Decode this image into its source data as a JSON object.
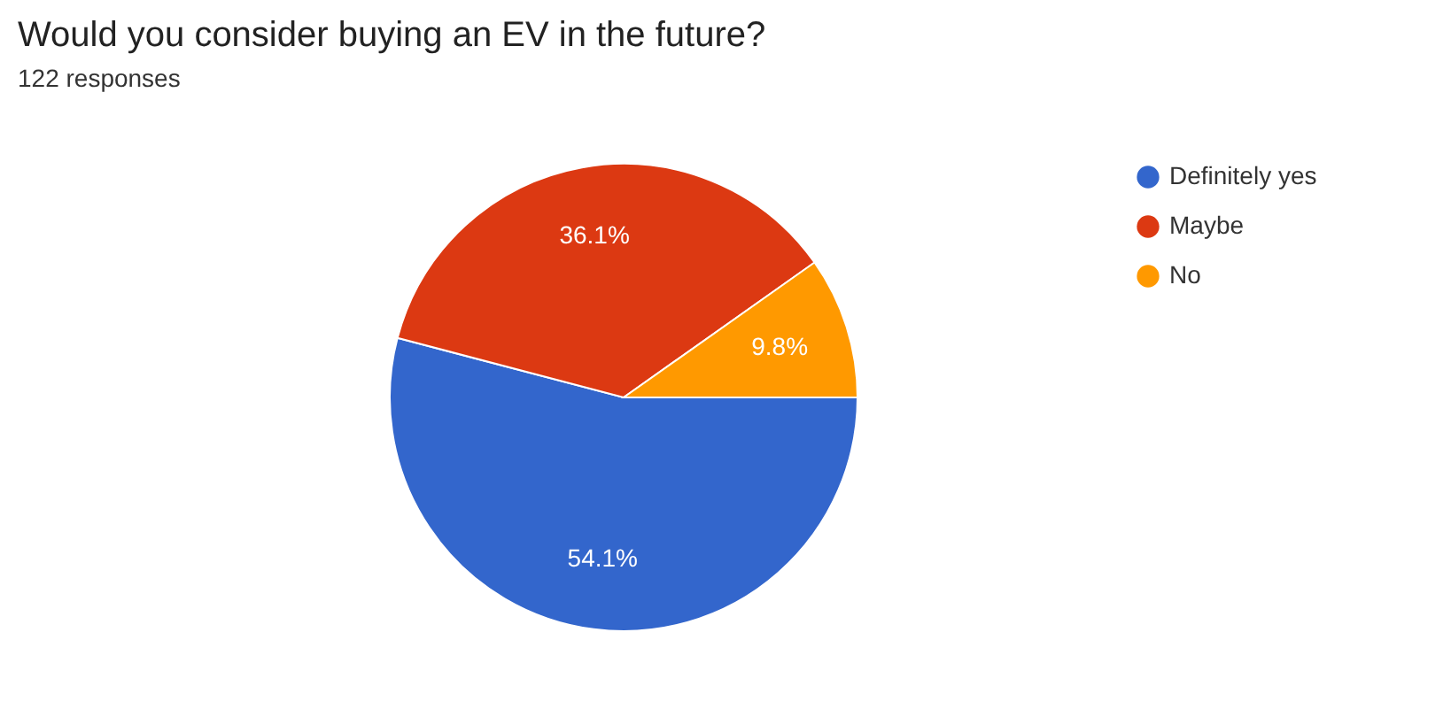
{
  "chart_data": {
    "type": "pie",
    "title": "Would you consider buying an EV in the future?",
    "subtitle": "122 responses",
    "categories": [
      "Definitely yes",
      "Maybe",
      "No"
    ],
    "values": [
      54.1,
      36.1,
      9.8
    ],
    "colors": [
      "#3366cc",
      "#dc3912",
      "#ff9900"
    ],
    "value_labels": [
      "54.1%",
      "36.1%",
      "9.8%"
    ],
    "legend": "top right"
  }
}
